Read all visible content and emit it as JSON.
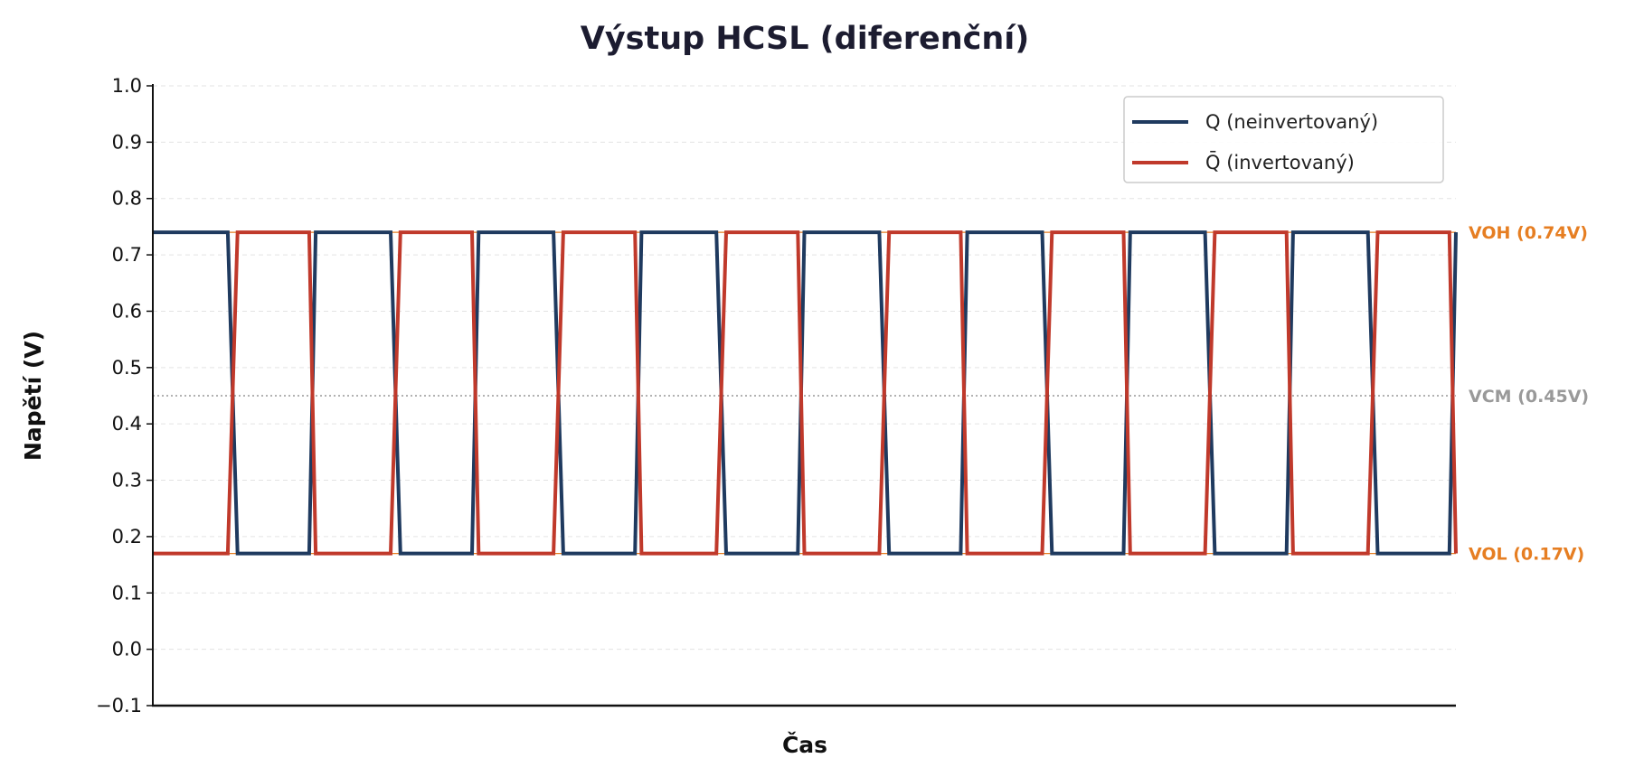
{
  "chart_data": {
    "type": "line",
    "title": "Výstup HCSL (diferenční)",
    "xlabel": "Čas",
    "ylabel": "Napětí (V)",
    "ylim": [
      -0.1,
      1.0
    ],
    "xlim": [
      0,
      8
    ],
    "yticks": [
      "−0.1",
      "0.0",
      "0.1",
      "0.2",
      "0.3",
      "0.4",
      "0.5",
      "0.6",
      "0.7",
      "0.8",
      "0.9",
      "1.0"
    ],
    "ytick_values": [
      -0.1,
      0.0,
      0.1,
      0.2,
      0.3,
      0.4,
      0.5,
      0.6,
      0.7,
      0.8,
      0.9,
      1.0
    ],
    "x_ticks_shown": false,
    "grid": "horizontal dashed",
    "legend_position": "top-right",
    "x": [
      0,
      0.46,
      0.52,
      0.96,
      1.0,
      1.46,
      1.52,
      1.96,
      2.0,
      2.46,
      2.52,
      2.96,
      3.0,
      3.46,
      3.52,
      3.96,
      4.0,
      4.46,
      4.52,
      4.96,
      5.0,
      5.46,
      5.52,
      5.96,
      6.0,
      6.46,
      6.52,
      6.96,
      7.0,
      7.46,
      7.52,
      7.96,
      8.0
    ],
    "series": [
      {
        "name": "Q (neinvertovaný)",
        "color": "#1f3a5f",
        "values": [
          0.74,
          0.74,
          0.17,
          0.17,
          0.74,
          0.74,
          0.17,
          0.17,
          0.74,
          0.74,
          0.17,
          0.17,
          0.74,
          0.74,
          0.17,
          0.17,
          0.74,
          0.74,
          0.17,
          0.17,
          0.74,
          0.74,
          0.17,
          0.17,
          0.74,
          0.74,
          0.17,
          0.17,
          0.74,
          0.74,
          0.17,
          0.17,
          0.74
        ]
      },
      {
        "name": "Q̄ (invertovaný)",
        "color": "#c0392b",
        "values": [
          0.17,
          0.17,
          0.74,
          0.74,
          0.17,
          0.17,
          0.74,
          0.74,
          0.17,
          0.17,
          0.74,
          0.74,
          0.17,
          0.17,
          0.74,
          0.74,
          0.17,
          0.17,
          0.74,
          0.74,
          0.17,
          0.17,
          0.74,
          0.74,
          0.17,
          0.17,
          0.74,
          0.74,
          0.17,
          0.17,
          0.74,
          0.74,
          0.17
        ]
      }
    ],
    "reference_lines": [
      {
        "label": "VOH (0.74V)",
        "y": 0.74,
        "color": "#e67e22",
        "style": "solid"
      },
      {
        "label": "VCM (0.45V)",
        "y": 0.45,
        "color": "#999999",
        "style": "dotted"
      },
      {
        "label": "VOL (0.17V)",
        "y": 0.17,
        "color": "#e67e22",
        "style": "solid"
      }
    ]
  }
}
